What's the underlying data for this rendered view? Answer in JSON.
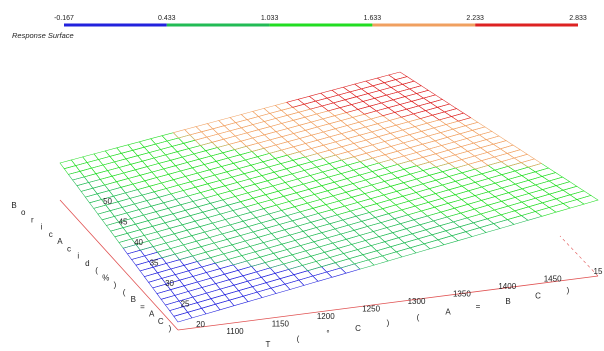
{
  "chart_data": {
    "type": "surface",
    "title": "Response Surface",
    "colorbar": {
      "ticks": [
        "-0.167",
        "0.433",
        "1.033",
        "1.633",
        "2.233",
        "2.833"
      ],
      "colors": [
        "#2222dd",
        "#22bb55",
        "#22dd22",
        "#f0a060",
        "#dd2222"
      ]
    },
    "x_axis": {
      "label_chars": [
        "T",
        "(",
        "°",
        "C",
        ")",
        "(",
        "A",
        "=",
        "B",
        "C",
        ")"
      ],
      "ticks": [
        "1100",
        "1150",
        "1200",
        "1250",
        "1300",
        "1350",
        "1400",
        "1450",
        "15"
      ],
      "range": [
        1100,
        1500
      ]
    },
    "y_axis": {
      "label_chars": [
        "B",
        "o",
        "r",
        "i",
        "c",
        "A",
        "c",
        "i",
        "d",
        "(",
        "%",
        ")",
        "(",
        "B",
        "=",
        "A",
        "C",
        ")"
      ],
      "ticks": [
        "20",
        "25",
        "30",
        "35",
        "40",
        "45",
        "50"
      ],
      "range": [
        20,
        50
      ]
    },
    "surface": {
      "z_range": [
        -0.167,
        2.833
      ],
      "corner_values": {
        "x_min_y_min": -0.167,
        "x_max_y_min": 1.2,
        "x_min_y_max": 1.1,
        "x_max_y_max": 2.833
      }
    },
    "grid": false
  }
}
